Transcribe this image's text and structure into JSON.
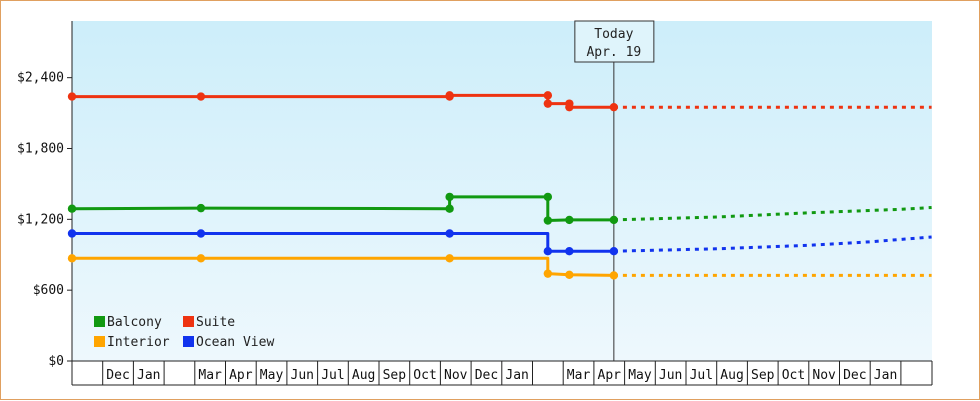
{
  "chart_data": {
    "type": "line",
    "title": "",
    "xlabel": "",
    "ylabel": "",
    "ylim": [
      0,
      2880
    ],
    "y_ticks": [
      "$0",
      "$600",
      "$1,200",
      "$1,800",
      "$2,400"
    ],
    "y_tick_values": [
      0,
      600,
      1200,
      1800,
      2400
    ],
    "months": [
      "",
      "Dec",
      "Jan",
      "",
      "Mar",
      "Apr",
      "May",
      "Jun",
      "Jul",
      "Aug",
      "Sep",
      "Oct",
      "Nov",
      "Dec",
      "Jan",
      "",
      "Mar",
      "Apr",
      "May",
      "Jun",
      "Jul",
      "Aug",
      "Sep",
      "Oct",
      "Nov",
      "Dec",
      "Jan",
      ""
    ],
    "today": {
      "line1": "Today",
      "line2": "Apr. 19",
      "month_index": 17.65
    },
    "grid": false,
    "legend_position": "bottom-left",
    "series": [
      {
        "name": "Balcony",
        "color": "#119911",
        "history": [
          [
            0.0,
            1290
          ],
          [
            4.2,
            1295
          ],
          [
            12.3,
            1290
          ],
          [
            12.3,
            1390
          ],
          [
            15.5,
            1390
          ],
          [
            15.5,
            1190
          ],
          [
            16.2,
            1195
          ],
          [
            17.65,
            1195
          ]
        ],
        "forecast": [
          [
            17.65,
            1195
          ],
          [
            21.0,
            1220
          ],
          [
            24.0,
            1255
          ],
          [
            27.0,
            1285
          ],
          [
            28.0,
            1300
          ]
        ]
      },
      {
        "name": "Suite",
        "color": "#ee3311",
        "history": [
          [
            0.0,
            2240
          ],
          [
            4.2,
            2240
          ],
          [
            12.3,
            2240
          ],
          [
            12.3,
            2250
          ],
          [
            15.5,
            2250
          ],
          [
            15.5,
            2180
          ],
          [
            16.2,
            2180
          ],
          [
            16.2,
            2150
          ],
          [
            17.65,
            2150
          ]
        ],
        "forecast": [
          [
            17.65,
            2150
          ],
          [
            28.0,
            2150
          ]
        ]
      },
      {
        "name": "Interior",
        "color": "#ffa500",
        "history": [
          [
            0.0,
            870
          ],
          [
            4.2,
            870
          ],
          [
            12.3,
            870
          ],
          [
            15.5,
            870
          ],
          [
            15.5,
            740
          ],
          [
            16.2,
            730
          ],
          [
            17.65,
            725
          ]
        ],
        "forecast": [
          [
            17.65,
            725
          ],
          [
            28.0,
            725
          ]
        ]
      },
      {
        "name": "Ocean View",
        "color": "#1133ee",
        "history": [
          [
            0.0,
            1080
          ],
          [
            4.2,
            1080
          ],
          [
            12.3,
            1080
          ],
          [
            15.5,
            1080
          ],
          [
            15.5,
            930
          ],
          [
            16.2,
            930
          ],
          [
            17.65,
            930
          ]
        ],
        "forecast": [
          [
            17.65,
            930
          ],
          [
            21.0,
            950
          ],
          [
            24.0,
            980
          ],
          [
            26.0,
            1010
          ],
          [
            28.0,
            1050
          ]
        ]
      }
    ],
    "markers": [
      {
        "series": 0,
        "points": [
          [
            0.0,
            1290
          ],
          [
            4.2,
            1295
          ],
          [
            12.3,
            1290
          ],
          [
            12.3,
            1390
          ],
          [
            15.5,
            1390
          ],
          [
            15.5,
            1190
          ],
          [
            16.2,
            1195
          ],
          [
            17.65,
            1195
          ]
        ]
      },
      {
        "series": 1,
        "points": [
          [
            0.0,
            2240
          ],
          [
            4.2,
            2240
          ],
          [
            12.3,
            2240
          ],
          [
            12.3,
            2250
          ],
          [
            15.5,
            2250
          ],
          [
            15.5,
            2180
          ],
          [
            16.2,
            2180
          ],
          [
            16.2,
            2150
          ],
          [
            17.65,
            2150
          ]
        ]
      },
      {
        "series": 2,
        "points": [
          [
            0.0,
            870
          ],
          [
            4.2,
            870
          ],
          [
            12.3,
            870
          ],
          [
            15.5,
            740
          ],
          [
            16.2,
            730
          ],
          [
            17.65,
            725
          ]
        ]
      },
      {
        "series": 3,
        "points": [
          [
            0.0,
            1080
          ],
          [
            4.2,
            1080
          ],
          [
            12.3,
            1080
          ],
          [
            15.5,
            930
          ],
          [
            16.2,
            930
          ],
          [
            17.65,
            930
          ]
        ]
      }
    ]
  }
}
